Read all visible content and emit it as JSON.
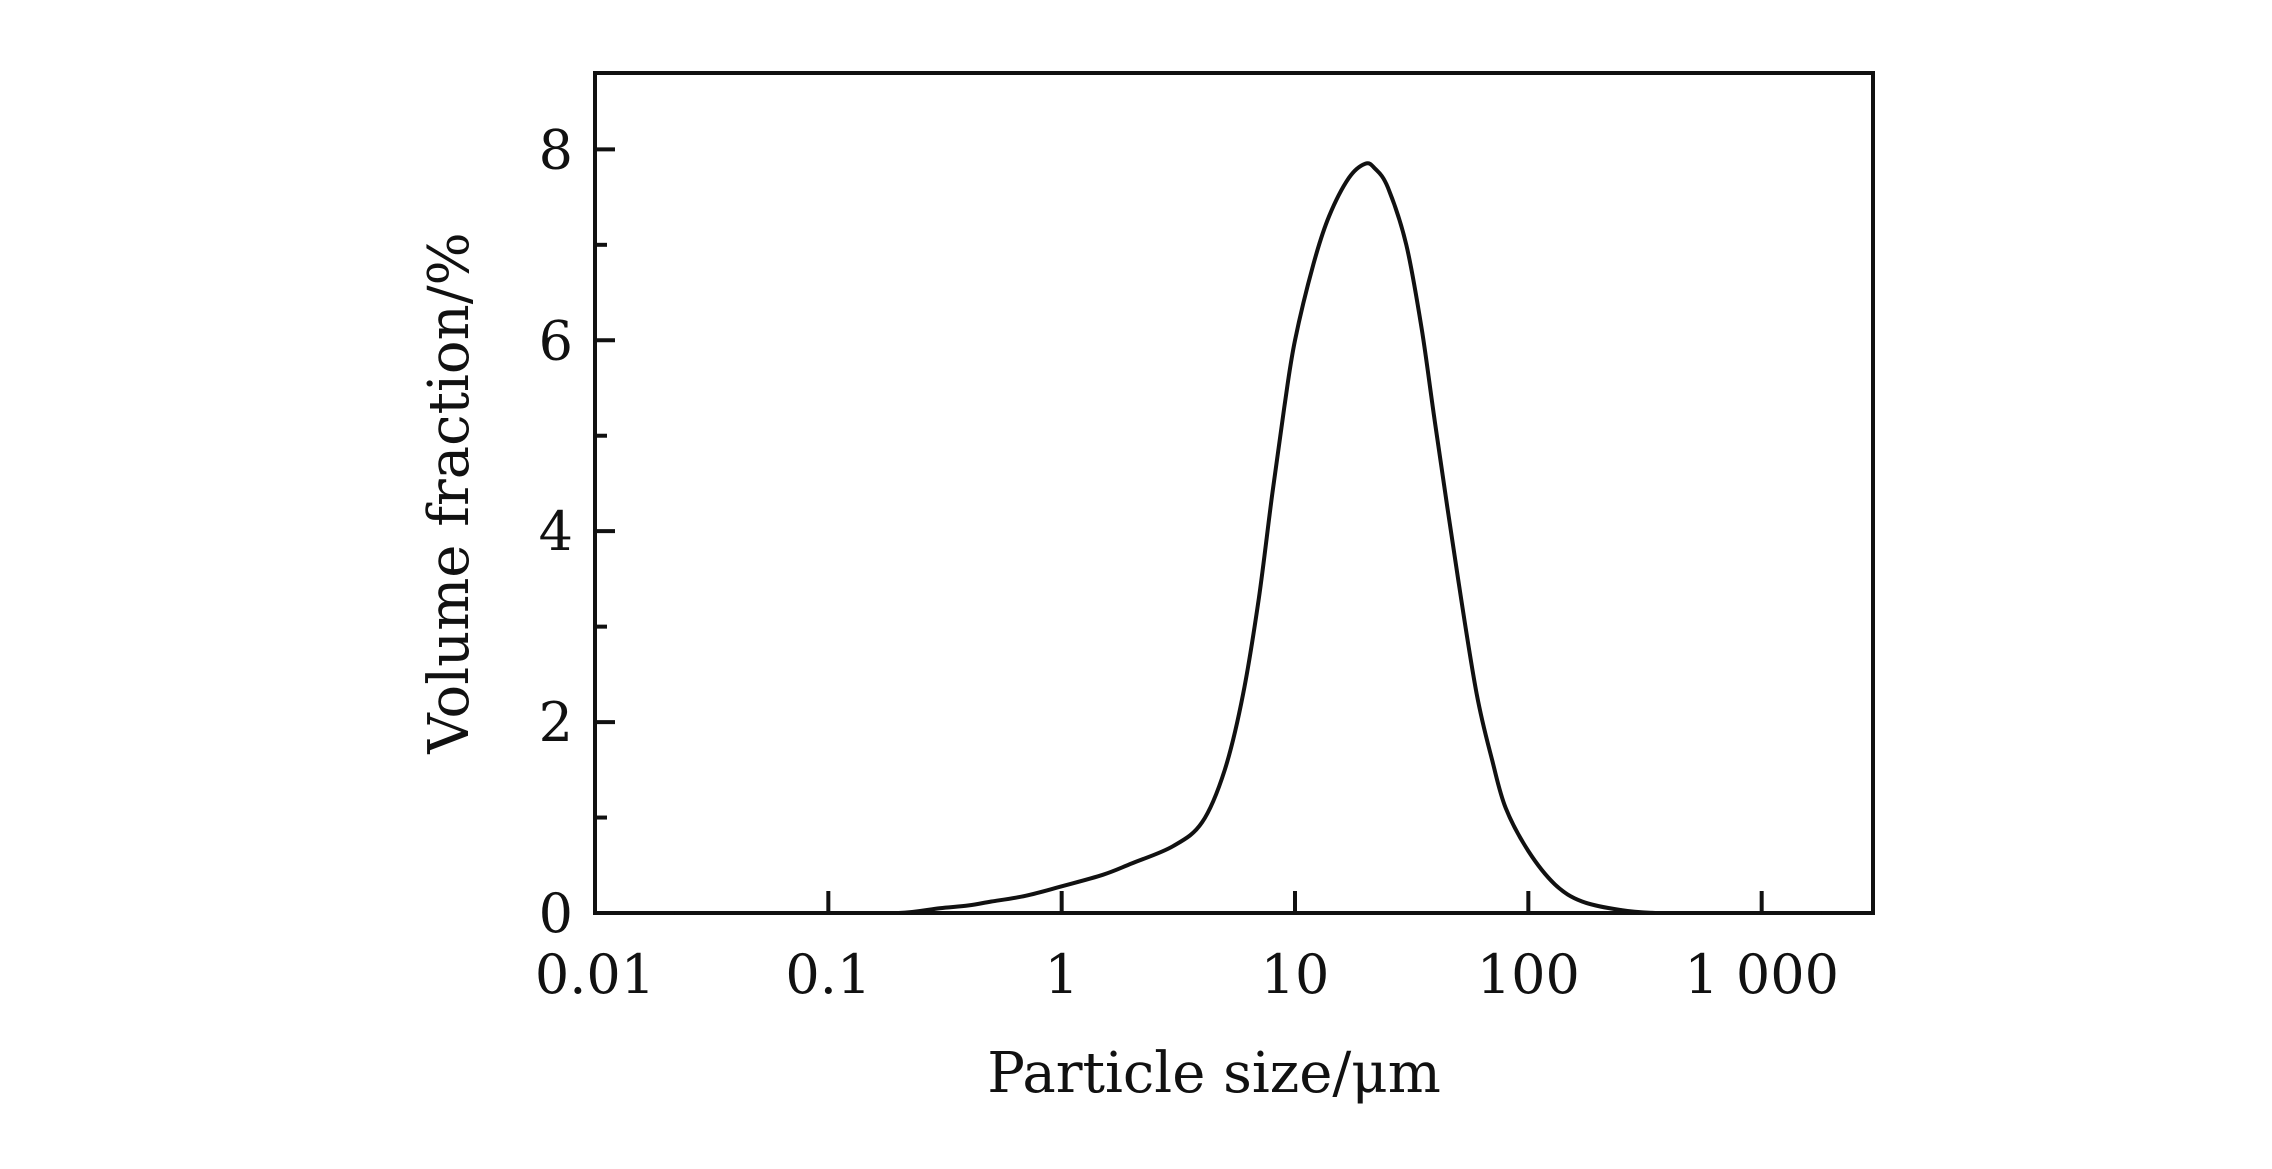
{
  "chart_data": {
    "type": "line",
    "title": "",
    "xlabel": "Particle size/μm",
    "ylabel": "Volume fraction/%",
    "x_scale": "log",
    "xlim": [
      0.01,
      3000
    ],
    "ylim": [
      0,
      8.8
    ],
    "x_ticks": [
      {
        "value": 0.01,
        "label": "0.01"
      },
      {
        "value": 0.1,
        "label": "0.1"
      },
      {
        "value": 1,
        "label": "1"
      },
      {
        "value": 10,
        "label": "10"
      },
      {
        "value": 100,
        "label": "100"
      },
      {
        "value": 1000,
        "label": "1 000"
      }
    ],
    "y_ticks": [
      {
        "value": 0,
        "label": "0"
      },
      {
        "value": 2,
        "label": "2"
      },
      {
        "value": 4,
        "label": "4"
      },
      {
        "value": 6,
        "label": "6"
      },
      {
        "value": 8,
        "label": "8"
      }
    ],
    "y_minor_ticks": [
      1,
      3,
      5,
      7
    ],
    "grid": false,
    "legend": "none",
    "colors": {
      "line": "#111111",
      "axis": "#111111",
      "background": "#ffffff"
    },
    "series": [
      {
        "x": [
          0.022,
          0.05,
          0.1,
          0.2,
          0.3,
          0.4,
          0.5,
          0.7,
          1.0,
          1.5,
          2.0,
          3.0,
          4.0,
          5.0,
          6.0,
          7.0,
          8.0,
          9.0,
          10.0,
          12.0,
          14.0,
          17.0,
          20.0,
          22.0,
          25.0,
          30.0,
          35.0,
          40.0,
          50.0,
          60.0,
          70.0,
          80.0,
          100.0,
          130.0,
          170.0,
          250.0,
          350.0,
          500.0,
          1000.0,
          1800.0
        ],
        "y": [
          0.0,
          0.0,
          0.0,
          0.0,
          0.05,
          0.08,
          0.12,
          0.18,
          0.28,
          0.4,
          0.52,
          0.7,
          0.95,
          1.5,
          2.3,
          3.3,
          4.4,
          5.3,
          6.0,
          6.8,
          7.3,
          7.7,
          7.85,
          7.8,
          7.6,
          7.0,
          6.1,
          5.1,
          3.5,
          2.3,
          1.6,
          1.1,
          0.65,
          0.3,
          0.12,
          0.03,
          0.0,
          0.0,
          0.0,
          0.0
        ]
      }
    ]
  }
}
